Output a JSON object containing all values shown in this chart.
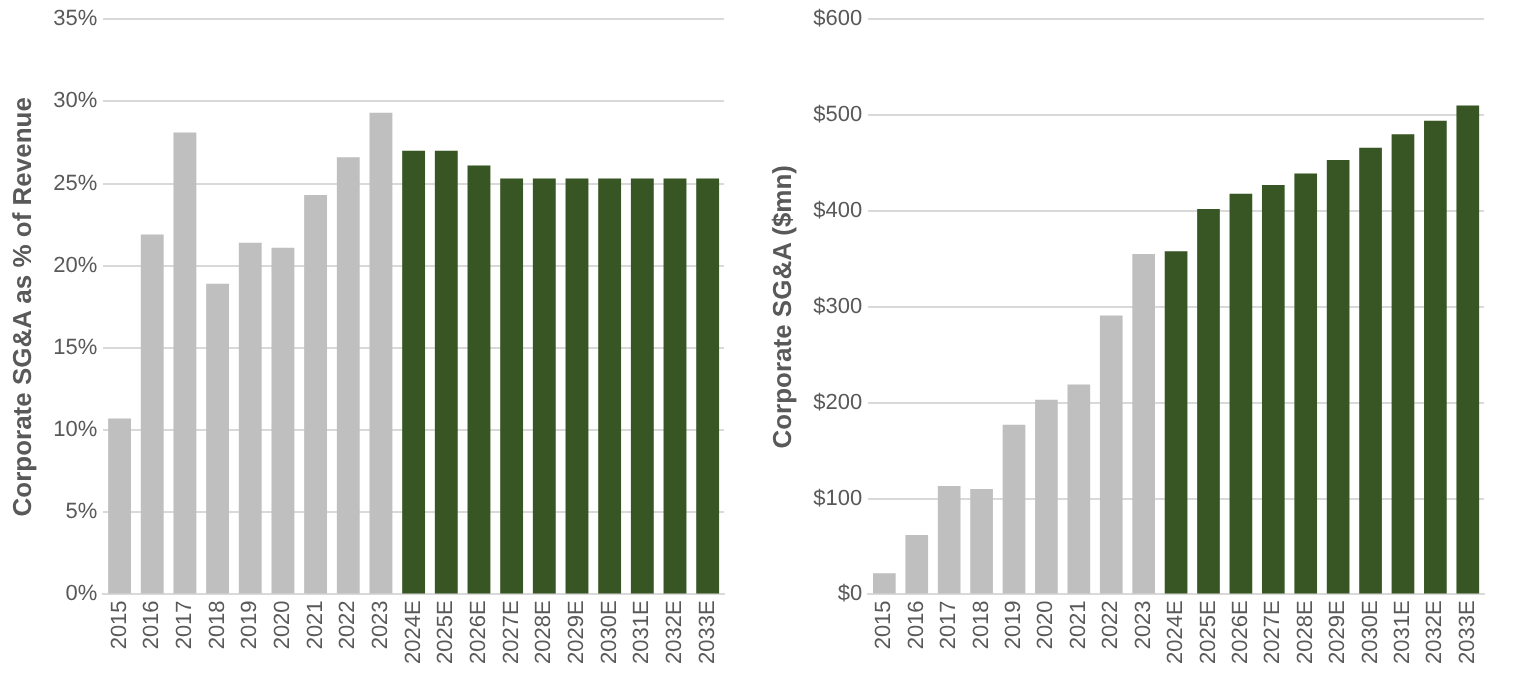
{
  "chart_data": [
    {
      "type": "bar",
      "ylabel": "Corporate SG&A as % of Revenue",
      "categories": [
        "2015",
        "2016",
        "2017",
        "2018",
        "2019",
        "2020",
        "2021",
        "2022",
        "2023",
        "2024E",
        "2025E",
        "2026E",
        "2027E",
        "2028E",
        "2029E",
        "2030E",
        "2031E",
        "2032E",
        "2033E"
      ],
      "values": [
        10.7,
        21.9,
        28.1,
        18.9,
        21.4,
        21.1,
        24.3,
        26.6,
        29.3,
        27.0,
        27.0,
        26.1,
        25.3,
        25.3,
        25.3,
        25.3,
        25.3,
        25.3,
        25.3
      ],
      "colors": [
        "#bfbfbf",
        "#bfbfbf",
        "#bfbfbf",
        "#bfbfbf",
        "#bfbfbf",
        "#bfbfbf",
        "#bfbfbf",
        "#bfbfbf",
        "#bfbfbf",
        "#375623",
        "#375623",
        "#375623",
        "#375623",
        "#375623",
        "#375623",
        "#375623",
        "#375623",
        "#375623",
        "#375623"
      ],
      "ylim": [
        0,
        35
      ],
      "yticks": [
        {
          "value": 0,
          "label": "0%"
        },
        {
          "value": 5,
          "label": "5%"
        },
        {
          "value": 10,
          "label": "10%"
        },
        {
          "value": 15,
          "label": "15%"
        },
        {
          "value": 20,
          "label": "20%"
        },
        {
          "value": 25,
          "label": "25%"
        },
        {
          "value": 30,
          "label": "30%"
        },
        {
          "value": 35,
          "label": "35%"
        }
      ],
      "grid": "y"
    },
    {
      "type": "bar",
      "ylabel": "Corporate SG&A ($mn)",
      "categories": [
        "2015",
        "2016",
        "2017",
        "2018",
        "2019",
        "2020",
        "2021",
        "2022",
        "2023",
        "2024E",
        "2025E",
        "2026E",
        "2027E",
        "2028E",
        "2029E",
        "2030E",
        "2031E",
        "2032E",
        "2033E"
      ],
      "values": [
        22,
        62,
        113,
        110,
        177,
        203,
        219,
        291,
        355,
        358,
        402,
        418,
        427,
        439,
        453,
        466,
        480,
        494,
        510
      ],
      "colors": [
        "#bfbfbf",
        "#bfbfbf",
        "#bfbfbf",
        "#bfbfbf",
        "#bfbfbf",
        "#bfbfbf",
        "#bfbfbf",
        "#bfbfbf",
        "#bfbfbf",
        "#375623",
        "#375623",
        "#375623",
        "#375623",
        "#375623",
        "#375623",
        "#375623",
        "#375623",
        "#375623",
        "#375623"
      ],
      "ylim": [
        0,
        600
      ],
      "yticks": [
        {
          "value": 0,
          "label": "$0"
        },
        {
          "value": 100,
          "label": "$100"
        },
        {
          "value": 200,
          "label": "$200"
        },
        {
          "value": 300,
          "label": "$300"
        },
        {
          "value": 400,
          "label": "$400"
        },
        {
          "value": 500,
          "label": "$500"
        },
        {
          "value": 600,
          "label": "$600"
        }
      ],
      "grid": "y"
    }
  ]
}
